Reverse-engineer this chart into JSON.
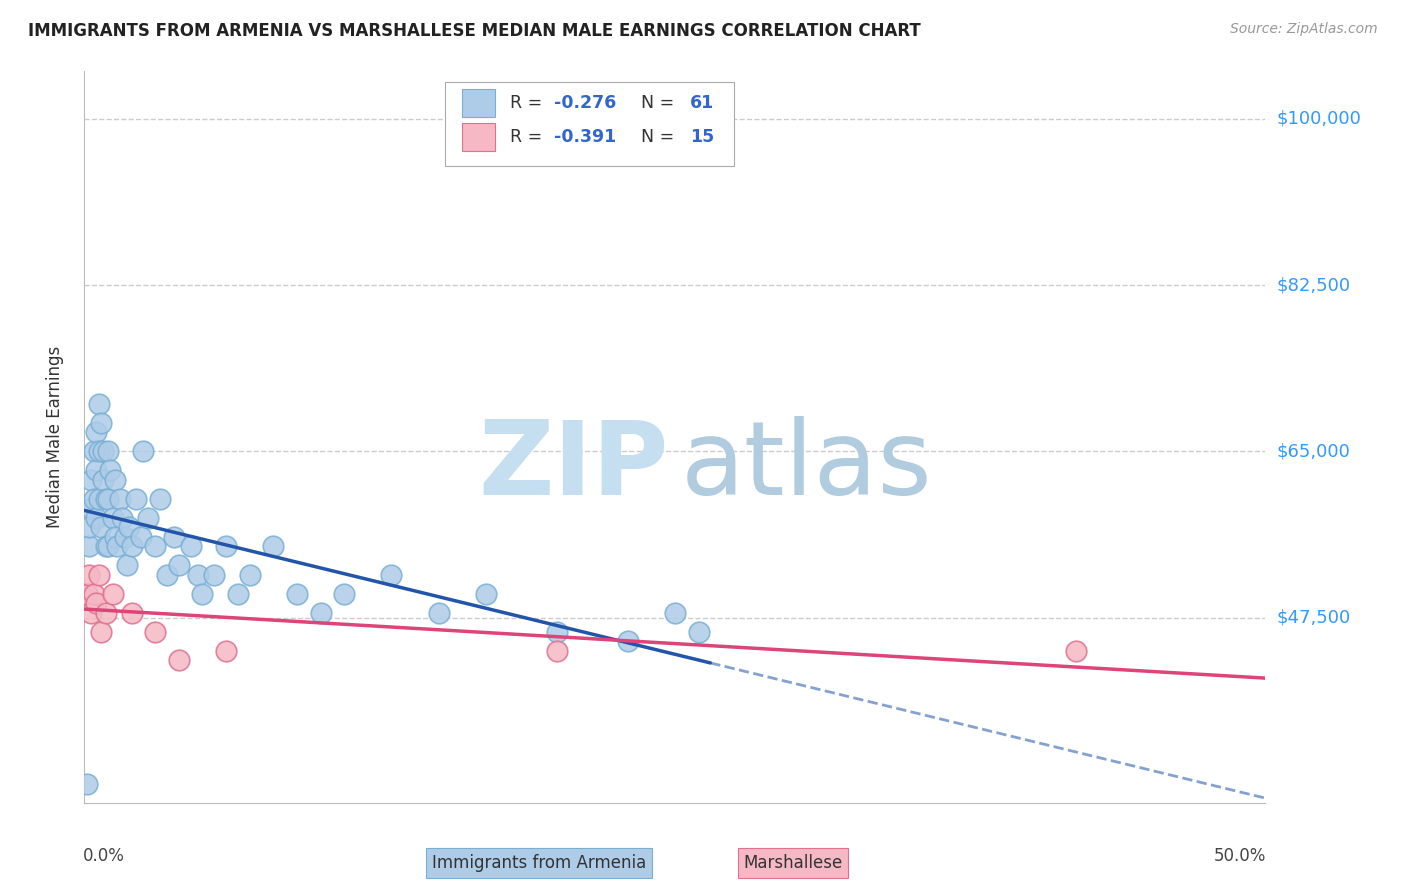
{
  "title": "IMMIGRANTS FROM ARMENIA VS MARSHALLESE MEDIAN MALE EARNINGS CORRELATION CHART",
  "source": "Source: ZipAtlas.com",
  "ylabel": "Median Male Earnings",
  "armenia_R": -0.276,
  "armenia_N": 61,
  "marshallese_R": -0.391,
  "marshallese_N": 15,
  "armenia_color": "#aecce8",
  "armenia_edge": "#7aafd4",
  "marshallese_color": "#f5b8c4",
  "marshallese_edge": "#e07090",
  "armenia_line_color": "#2255aa",
  "marshallese_line_color": "#dd4477",
  "ytick_vals": [
    47500,
    65000,
    82500,
    100000
  ],
  "ytick_labels": [
    "$47,500",
    "$65,000",
    "$82,500",
    "$100,000"
  ],
  "ytick_color": "#3399ff",
  "xlim": [
    0.0,
    0.5
  ],
  "ylim": [
    28000,
    105000
  ],
  "background_color": "#ffffff",
  "grid_color": "#cccccc",
  "watermark_zip_color": "#c5dff0",
  "watermark_atlas_color": "#b0ccde",
  "armenia_x": [
    0.001,
    0.001,
    0.002,
    0.002,
    0.003,
    0.003,
    0.004,
    0.004,
    0.005,
    0.005,
    0.005,
    0.006,
    0.006,
    0.006,
    0.007,
    0.007,
    0.008,
    0.008,
    0.009,
    0.009,
    0.01,
    0.01,
    0.01,
    0.011,
    0.012,
    0.013,
    0.013,
    0.014,
    0.015,
    0.016,
    0.017,
    0.018,
    0.019,
    0.02,
    0.022,
    0.024,
    0.025,
    0.027,
    0.03,
    0.032,
    0.035,
    0.038,
    0.04,
    0.045,
    0.048,
    0.05,
    0.055,
    0.06,
    0.065,
    0.07,
    0.08,
    0.09,
    0.1,
    0.11,
    0.13,
    0.15,
    0.17,
    0.2,
    0.23,
    0.25,
    0.26
  ],
  "armenia_y": [
    30000,
    50000,
    55000,
    57000,
    59000,
    62000,
    60000,
    65000,
    67000,
    63000,
    58000,
    70000,
    65000,
    60000,
    68000,
    57000,
    65000,
    62000,
    60000,
    55000,
    65000,
    60000,
    55000,
    63000,
    58000,
    62000,
    56000,
    55000,
    60000,
    58000,
    56000,
    53000,
    57000,
    55000,
    60000,
    56000,
    65000,
    58000,
    55000,
    60000,
    52000,
    56000,
    53000,
    55000,
    52000,
    50000,
    52000,
    55000,
    50000,
    52000,
    55000,
    50000,
    48000,
    50000,
    52000,
    48000,
    50000,
    46000,
    45000,
    48000,
    46000
  ],
  "marshallese_x": [
    0.001,
    0.002,
    0.003,
    0.004,
    0.005,
    0.006,
    0.007,
    0.009,
    0.012,
    0.02,
    0.03,
    0.04,
    0.06,
    0.2,
    0.42
  ],
  "marshallese_y": [
    50000,
    52000,
    48000,
    50000,
    49000,
    52000,
    46000,
    48000,
    50000,
    48000,
    46000,
    43000,
    44000,
    44000,
    44000
  ]
}
